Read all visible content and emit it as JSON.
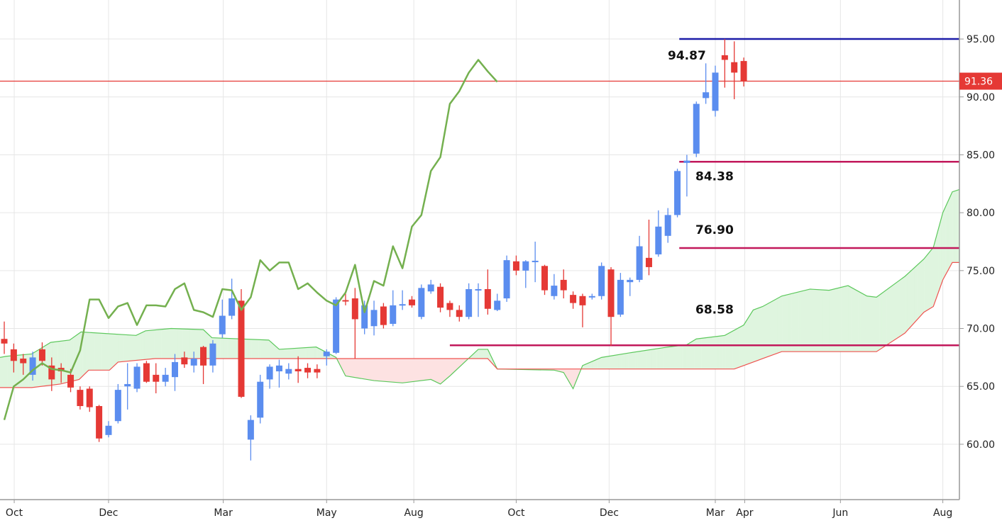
{
  "chart_data": {
    "type": "candlestick",
    "title": "",
    "xlabel": "",
    "ylabel": "",
    "ylim": [
      55.22,
      98.37
    ],
    "xlim": [
      -0.45,
      100.75
    ],
    "grid": true,
    "colors": {
      "up": "#5b8def",
      "down": "#e53935",
      "lagging_span": "#74b04f",
      "span_a": "#5cc85c",
      "span_b": "#ef5350",
      "cloud_bull": "#dff5df",
      "cloud_bear": "#fde2e2",
      "level_high": "#1c1ca8",
      "level_fib": "#c2185b",
      "last_price": "#e53935"
    },
    "y_ticks": [
      "95.00",
      "90.00",
      "85.00",
      "80.00",
      "75.00",
      "70.00",
      "65.00",
      "60.00"
    ],
    "y_tick_values": [
      95,
      90,
      85,
      80,
      75,
      70,
      65,
      60
    ],
    "x_ticks": [
      {
        "label": "Oct",
        "index": 1.05
      },
      {
        "label": "Dec",
        "index": 11
      },
      {
        "label": "Mar",
        "index": 23.1
      },
      {
        "label": "May",
        "index": 34
      },
      {
        "label": "Aug",
        "index": 43.2
      },
      {
        "label": "Oct",
        "index": 54
      },
      {
        "label": "Dec",
        "index": 63.8
      },
      {
        "label": "Mar",
        "index": 75
      },
      {
        "label": "Apr",
        "index": 78.1
      },
      {
        "label": "Jun",
        "index": 88.2
      },
      {
        "label": "Aug",
        "index": 99
      }
    ],
    "candles": [
      [
        69.1,
        70.6,
        67.8,
        68.7
      ],
      [
        68.2,
        68.7,
        66.2,
        67.2
      ],
      [
        67.4,
        67.8,
        66.0,
        67.0
      ],
      [
        66.0,
        68.0,
        65.5,
        67.5
      ],
      [
        68.2,
        68.8,
        66.8,
        67.2
      ],
      [
        66.8,
        67.5,
        64.6,
        65.6
      ],
      [
        66.6,
        67.0,
        65.3,
        66.3
      ],
      [
        66.0,
        66.5,
        64.5,
        64.9
      ],
      [
        64.7,
        65.0,
        63.0,
        63.3
      ],
      [
        64.8,
        65.0,
        62.8,
        63.2
      ],
      [
        63.3,
        63.4,
        60.2,
        60.5
      ],
      [
        60.8,
        62.0,
        60.6,
        61.6
      ],
      [
        62.0,
        65.2,
        61.8,
        64.7
      ],
      [
        65.0,
        67.0,
        63.0,
        65.2
      ],
      [
        64.8,
        67.0,
        64.5,
        66.7
      ],
      [
        67.0,
        67.2,
        65.3,
        65.4
      ],
      [
        66.0,
        67.0,
        64.4,
        65.4
      ],
      [
        65.4,
        66.6,
        65.0,
        66.0
      ],
      [
        65.8,
        67.8,
        64.6,
        67.1
      ],
      [
        67.5,
        68.0,
        66.6,
        66.9
      ],
      [
        66.8,
        68.0,
        66.2,
        67.4
      ],
      [
        68.4,
        68.5,
        65.2,
        66.8
      ],
      [
        66.8,
        69.0,
        66.2,
        68.7
      ],
      [
        69.5,
        72.5,
        69.2,
        71.1
      ],
      [
        71.1,
        74.3,
        70.8,
        72.6
      ],
      [
        72.4,
        73.4,
        64.0,
        64.1
      ],
      [
        60.4,
        62.5,
        58.6,
        62.1
      ],
      [
        62.3,
        66.0,
        61.8,
        65.4
      ],
      [
        65.6,
        66.9,
        64.8,
        66.7
      ],
      [
        66.3,
        67.3,
        64.9,
        66.8
      ],
      [
        66.1,
        67.0,
        65.6,
        66.5
      ],
      [
        66.5,
        67.6,
        65.3,
        66.3
      ],
      [
        66.6,
        67.0,
        65.7,
        66.2
      ],
      [
        66.5,
        66.9,
        65.7,
        66.2
      ],
      [
        67.6,
        68.2,
        66.8,
        68.0
      ],
      [
        67.9,
        72.7,
        67.8,
        72.5
      ],
      [
        72.45,
        73.0,
        72.0,
        72.35
      ],
      [
        72.6,
        73.5,
        67.4,
        70.8
      ],
      [
        70.0,
        72.4,
        69.5,
        72.0
      ],
      [
        70.2,
        72.4,
        69.4,
        71.6
      ],
      [
        71.9,
        72.2,
        70.0,
        70.3
      ],
      [
        70.4,
        73.3,
        70.2,
        72.0
      ],
      [
        72.0,
        73.3,
        71.6,
        72.1
      ],
      [
        72.5,
        72.8,
        71.8,
        72.0
      ],
      [
        71.0,
        73.8,
        70.8,
        73.5
      ],
      [
        73.2,
        74.2,
        73.0,
        73.8
      ],
      [
        73.6,
        73.9,
        71.4,
        71.8
      ],
      [
        72.2,
        72.4,
        71.0,
        71.6
      ],
      [
        71.6,
        72.0,
        70.6,
        71.0
      ],
      [
        71.0,
        73.9,
        70.8,
        73.4
      ],
      [
        73.3,
        73.9,
        71.0,
        73.4
      ],
      [
        73.4,
        75.1,
        71.2,
        71.7
      ],
      [
        71.6,
        73.0,
        71.5,
        72.4
      ],
      [
        72.6,
        76.3,
        72.3,
        75.9
      ],
      [
        75.8,
        76.3,
        74.6,
        75.0
      ],
      [
        75.0,
        75.9,
        73.5,
        75.8
      ],
      [
        75.75,
        77.5,
        74.0,
        75.85
      ],
      [
        75.4,
        75.5,
        72.9,
        73.3
      ],
      [
        72.8,
        74.7,
        72.5,
        73.7
      ],
      [
        74.2,
        75.1,
        72.6,
        73.3
      ],
      [
        72.9,
        73.2,
        71.7,
        72.2
      ],
      [
        72.8,
        73.0,
        70.1,
        72.0
      ],
      [
        72.7,
        73.0,
        72.5,
        72.8
      ],
      [
        72.8,
        75.7,
        72.5,
        75.4
      ],
      [
        75.1,
        75.3,
        68.5,
        71.0
      ],
      [
        71.2,
        74.8,
        71.0,
        74.2
      ],
      [
        74.0,
        74.4,
        72.8,
        74.2
      ],
      [
        74.2,
        78.0,
        74.0,
        77.1
      ],
      [
        76.1,
        79.4,
        74.6,
        75.3
      ],
      [
        76.4,
        80.2,
        76.2,
        78.8
      ],
      [
        78.0,
        80.4,
        77.4,
        79.8
      ],
      [
        79.8,
        83.8,
        79.6,
        83.6
      ],
      [
        84.3,
        85.0,
        81.4,
        84.5
      ],
      [
        85.1,
        89.6,
        84.8,
        89.4
      ],
      [
        89.9,
        92.9,
        89.4,
        90.4
      ],
      [
        88.8,
        92.7,
        88.3,
        92.1
      ],
      [
        93.6,
        95.0,
        90.8,
        93.2
      ],
      [
        93.0,
        94.8,
        89.8,
        92.1
      ],
      [
        93.1,
        93.4,
        90.9,
        91.36
      ]
    ],
    "candle_format": [
      "open",
      "high",
      "low",
      "close"
    ],
    "lagging_span": [
      62.1,
      65.0,
      65.6,
      66.4,
      67.0,
      66.5,
      66.4,
      66.2,
      68.1,
      72.5,
      72.5,
      70.9,
      71.9,
      72.2,
      70.3,
      72.0,
      72.0,
      71.9,
      73.4,
      73.9,
      71.6,
      71.4,
      71.0,
      73.4,
      73.3,
      71.6,
      72.7,
      75.9,
      75.0,
      75.7,
      75.7,
      73.4,
      73.9,
      73.1,
      72.4,
      72.0,
      73.1,
      75.5,
      71.4,
      74.1,
      73.7,
      77.1,
      75.2,
      78.8,
      79.8,
      83.6,
      84.8,
      89.4,
      90.5,
      92.1,
      93.2,
      92.2,
      91.3
    ],
    "span_a": [
      [
        -0.45,
        67.5
      ],
      [
        0.2,
        67.6
      ],
      [
        2.9,
        67.8
      ],
      [
        4.9,
        68.8
      ],
      [
        6.9,
        69.0
      ],
      [
        8.1,
        69.7
      ],
      [
        13.9,
        69.4
      ],
      [
        14.9,
        69.8
      ],
      [
        17.6,
        70.0
      ],
      [
        21,
        69.9
      ],
      [
        21.9,
        69.2
      ],
      [
        27.9,
        69.0
      ],
      [
        29,
        68.2
      ],
      [
        32.9,
        68.4
      ],
      [
        35,
        67.5
      ],
      [
        36,
        65.9
      ],
      [
        39,
        65.5
      ],
      [
        42,
        65.3
      ],
      [
        45,
        65.6
      ],
      [
        46,
        65.2
      ],
      [
        47,
        65.9
      ],
      [
        50,
        68.2
      ],
      [
        51,
        68.2
      ],
      [
        52,
        66.5
      ],
      [
        58,
        66.4
      ],
      [
        59,
        66.2
      ],
      [
        60,
        64.8
      ],
      [
        61,
        66.8
      ],
      [
        63,
        67.5
      ],
      [
        66,
        67.9
      ],
      [
        70,
        68.4
      ],
      [
        72,
        68.6
      ],
      [
        73,
        69.1
      ],
      [
        76,
        69.4
      ],
      [
        78,
        70.3
      ],
      [
        79,
        71.6
      ],
      [
        80,
        71.9
      ],
      [
        82,
        72.8
      ],
      [
        85,
        73.4
      ],
      [
        87,
        73.3
      ],
      [
        89,
        73.7
      ],
      [
        91,
        72.8
      ],
      [
        92,
        72.7
      ],
      [
        95,
        74.5
      ],
      [
        97,
        76.0
      ],
      [
        98,
        77.0
      ],
      [
        99,
        80.0
      ],
      [
        100,
        81.8
      ],
      [
        100.75,
        82.0
      ]
    ],
    "span_b": [
      [
        -0.45,
        64.9
      ],
      [
        2.9,
        64.9
      ],
      [
        5.9,
        65.2
      ],
      [
        7.9,
        65.6
      ],
      [
        8.9,
        66.4
      ],
      [
        11.1,
        66.4
      ],
      [
        12,
        67.1
      ],
      [
        15.9,
        67.4
      ],
      [
        51,
        67.4
      ],
      [
        52,
        66.5
      ],
      [
        77,
        66.5
      ],
      [
        78,
        66.8
      ],
      [
        80,
        67.4
      ],
      [
        82,
        68.0
      ],
      [
        92,
        68.0
      ],
      [
        95,
        69.6
      ],
      [
        97,
        71.4
      ],
      [
        98,
        71.9
      ],
      [
        99,
        74.2
      ],
      [
        100,
        75.7
      ],
      [
        100.75,
        75.7
      ]
    ],
    "levels": [
      {
        "name": "high",
        "value": 95.0,
        "label": "94.87",
        "from_index": 71.2,
        "color_key": "level_high"
      },
      {
        "name": "fib-1",
        "value": 84.4,
        "label": "84.38",
        "from_index": 71.2,
        "color_key": "level_fib"
      },
      {
        "name": "fib-2",
        "value": 76.95,
        "label": "76.90",
        "from_index": 71.2,
        "color_key": "level_fib"
      },
      {
        "name": "fib-3",
        "value": 68.55,
        "label": "68.58",
        "from_index": 47,
        "color_key": "level_fib"
      }
    ],
    "last_price": {
      "value": 91.36,
      "label": "91.36"
    }
  }
}
